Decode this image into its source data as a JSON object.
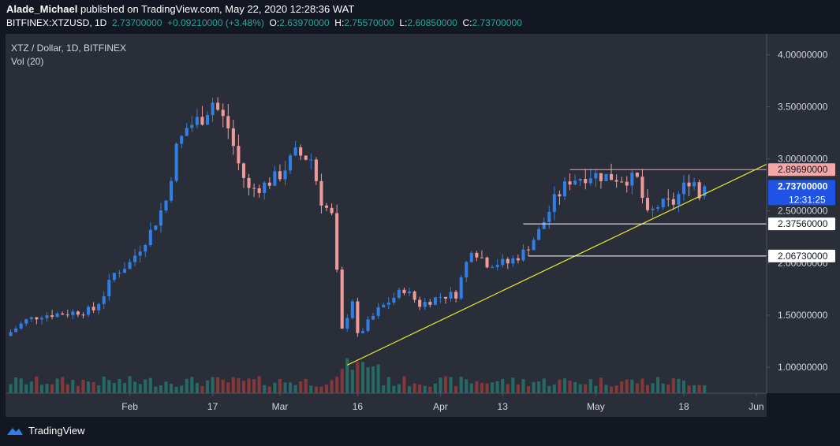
{
  "header": {
    "author": "Alade_Michael",
    "published_text": "published on TradingView.com, May 22, 2020 12:28:36 WAT",
    "symbol": "BITFINEX:XTZUSD, 1D",
    "last": "2.73700000",
    "change": "+0.09210000 (+3.48%)",
    "o_label": "O:",
    "o": "2.63970000",
    "h_label": "H:",
    "h": "2.75570000",
    "l_label": "L:",
    "l": "2.60850000",
    "c_label": "C:",
    "c": "2.73700000"
  },
  "legend": {
    "title": "XTZ / Dollar, 1D, BITFINEX",
    "vol": "Vol (20)"
  },
  "footer": {
    "brand": "TradingView"
  },
  "colors": {
    "background": "#131722",
    "plot_bg": "#2a2e39",
    "up": "#2f7fe6",
    "down": "#ef9a9a",
    "vol_up": "#26716a",
    "vol_down": "#8e3a3a",
    "trendline": "#e6e62e",
    "resistance": "#f4a7a7",
    "support": "#ffffff",
    "last_price_tag": "#1e53e5"
  },
  "chart_data": {
    "type": "candlestick",
    "title": "XTZ / Dollar, 1D, BITFINEX",
    "price_axis": {
      "range": [
        0.75,
        4.2
      ],
      "ticks": [
        "1.00000000",
        "1.50000000",
        "2.00000000",
        "2.50000000",
        "3.00000000",
        "3.50000000",
        "4.00000000"
      ]
    },
    "time_axis": {
      "range": [
        "2020-01-08",
        "2020-06-03"
      ],
      "ticks": [
        {
          "label": "Feb",
          "date": "2020-02-01"
        },
        {
          "label": "17",
          "date": "2020-02-17"
        },
        {
          "label": "Mar",
          "date": "2020-03-01"
        },
        {
          "label": "16",
          "date": "2020-03-16"
        },
        {
          "label": "Apr",
          "date": "2020-04-01"
        },
        {
          "label": "13",
          "date": "2020-04-13"
        },
        {
          "label": "May",
          "date": "2020-05-01"
        },
        {
          "label": "18",
          "date": "2020-05-18"
        },
        {
          "label": "Jun",
          "date": "2020-06-01"
        }
      ]
    },
    "anchors": [
      [
        "2020-01-08",
        1.3
      ],
      [
        "2020-01-12",
        1.45
      ],
      [
        "2020-01-15",
        1.5
      ],
      [
        "2020-01-20",
        1.52
      ],
      [
        "2020-01-25",
        1.55
      ],
      [
        "2020-01-27",
        1.7
      ],
      [
        "2020-01-29",
        1.9
      ],
      [
        "2020-02-01",
        2.0
      ],
      [
        "2020-02-05",
        2.3
      ],
      [
        "2020-02-08",
        2.6
      ],
      [
        "2020-02-10",
        3.1
      ],
      [
        "2020-02-12",
        3.3
      ],
      [
        "2020-02-15",
        3.4
      ],
      [
        "2020-02-17",
        3.55
      ],
      [
        "2020-02-20",
        3.3
      ],
      [
        "2020-02-22",
        2.95
      ],
      [
        "2020-02-24",
        2.7
      ],
      [
        "2020-02-27",
        2.75
      ],
      [
        "2020-03-01",
        2.85
      ],
      [
        "2020-03-04",
        3.05
      ],
      [
        "2020-03-07",
        3.0
      ],
      [
        "2020-03-09",
        2.6
      ],
      [
        "2020-03-11",
        2.45
      ],
      [
        "2020-03-12",
        1.9
      ],
      [
        "2020-03-13",
        1.35
      ],
      [
        "2020-03-15",
        1.65
      ],
      [
        "2020-03-16",
        1.3
      ],
      [
        "2020-03-20",
        1.55
      ],
      [
        "2020-03-25",
        1.75
      ],
      [
        "2020-03-28",
        1.6
      ],
      [
        "2020-04-01",
        1.68
      ],
      [
        "2020-04-04",
        1.7
      ],
      [
        "2020-04-07",
        2.15
      ],
      [
        "2020-04-10",
        2.0
      ],
      [
        "2020-04-14",
        2.0
      ],
      [
        "2020-04-17",
        2.1
      ],
      [
        "2020-04-20",
        2.3
      ],
      [
        "2020-04-23",
        2.6
      ],
      [
        "2020-04-26",
        2.8
      ],
      [
        "2020-04-30",
        2.85
      ],
      [
        "2020-05-05",
        2.82
      ],
      [
        "2020-05-09",
        2.8
      ],
      [
        "2020-05-11",
        2.45
      ],
      [
        "2020-05-13",
        2.55
      ],
      [
        "2020-05-16",
        2.58
      ],
      [
        "2020-05-19",
        2.8
      ],
      [
        "2020-05-20",
        2.78
      ],
      [
        "2020-05-21",
        2.64
      ],
      [
        "2020-05-22",
        2.737
      ]
    ],
    "last_candle": {
      "date": "2020-05-22",
      "open": 2.6397,
      "high": 2.7557,
      "low": 2.6085,
      "close": 2.737
    },
    "volume_scale_max": 100,
    "levels": [
      {
        "name": "resistance",
        "price": 2.8969,
        "label": "2.89690000",
        "from": "2020-04-26"
      },
      {
        "name": "last-price",
        "price": 2.737,
        "label": "2.73700000",
        "countdown": "12:31:25"
      },
      {
        "name": "support-1",
        "price": 2.3756,
        "label": "2.37560000",
        "from": "2020-04-17"
      },
      {
        "name": "support-2",
        "price": 2.0673,
        "label": "2.06730000",
        "from": "2020-04-18"
      }
    ],
    "trendline": {
      "from": [
        "2020-03-14",
        1.02
      ],
      "to": [
        "2020-06-06",
        3.02
      ]
    }
  }
}
